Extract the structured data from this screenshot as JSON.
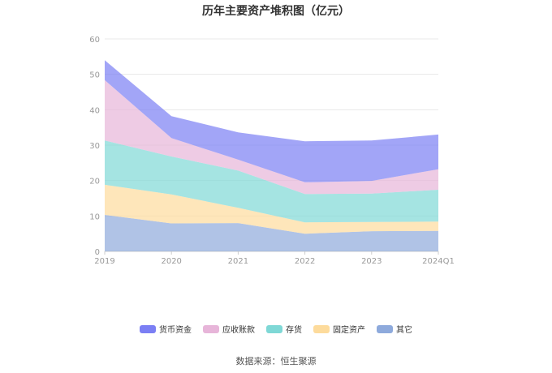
{
  "chart_data": {
    "type": "area",
    "title": "历年主要资产堆积图（亿元）",
    "categories": [
      "2019",
      "2020",
      "2021",
      "2022",
      "2023",
      "2024Q1"
    ],
    "ylim": [
      0,
      60
    ],
    "yticks": [
      0,
      10,
      20,
      30,
      40,
      50,
      60
    ],
    "grid": true,
    "stacked": true,
    "legend_position": "bottom",
    "series": [
      {
        "name": "其它",
        "color": "#8eaadc",
        "values": [
          10.3,
          7.9,
          8.0,
          5.0,
          5.7,
          5.8
        ]
      },
      {
        "name": "固定资产",
        "color": "#fddb9c",
        "values": [
          8.5,
          8.2,
          4.3,
          3.2,
          2.6,
          2.6
        ]
      },
      {
        "name": "存货",
        "color": "#7fd8d6",
        "values": [
          12.5,
          10.7,
          10.5,
          8.0,
          8.0,
          9.0
        ]
      },
      {
        "name": "应收账款",
        "color": "#e7b5d9",
        "values": [
          17.1,
          5.2,
          3.1,
          3.3,
          3.6,
          5.8
        ]
      },
      {
        "name": "货币资金",
        "color": "#7b7ff4",
        "values": [
          5.6,
          6.2,
          7.7,
          11.6,
          11.4,
          9.8
        ]
      }
    ]
  },
  "legend_order": [
    "货币资金",
    "应收账款",
    "存货",
    "固定资产",
    "其它"
  ],
  "source_text": "数据来源：恒生聚源"
}
